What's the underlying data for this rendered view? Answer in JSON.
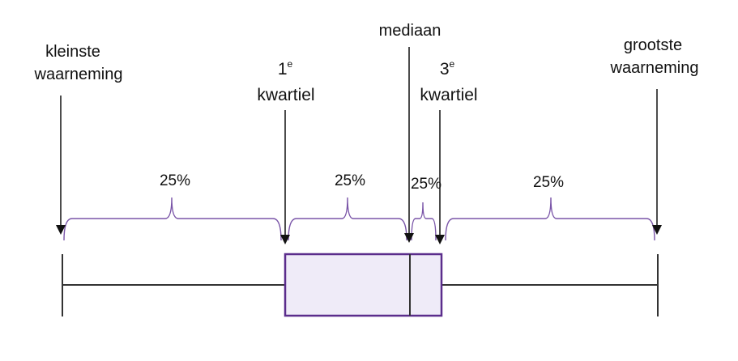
{
  "labels": {
    "min_line1": "kleinste",
    "min_line2": "waarneming",
    "q1_number": "1",
    "q1_superscript": "e",
    "q1_word": "kwartiel",
    "median": "mediaan",
    "q3_number": "3",
    "q3_superscript": "e",
    "q3_word": "kwartiel",
    "max_line1": "grootste",
    "max_line2": "waarneming"
  },
  "segments": [
    {
      "label": "25%"
    },
    {
      "label": "25%"
    },
    {
      "label": "25%"
    },
    {
      "label": "25%"
    }
  ],
  "colors": {
    "box_fill": "#efebf8",
    "box_stroke": "#5b2d8c",
    "brace": "#7a55a8",
    "line": "#333333",
    "arrow": "#111111"
  }
}
